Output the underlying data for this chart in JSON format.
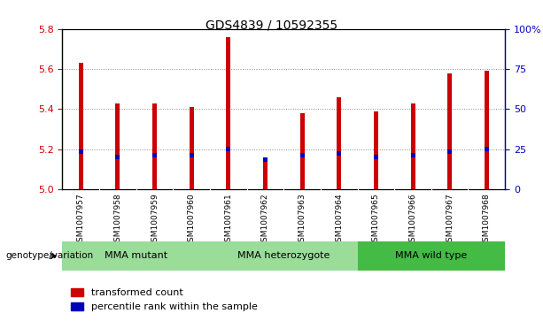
{
  "title": "GDS4839 / 10592355",
  "samples": [
    "GSM1007957",
    "GSM1007958",
    "GSM1007959",
    "GSM1007960",
    "GSM1007961",
    "GSM1007962",
    "GSM1007963",
    "GSM1007964",
    "GSM1007965",
    "GSM1007966",
    "GSM1007967",
    "GSM1007968"
  ],
  "red_values": [
    5.63,
    5.43,
    5.43,
    5.41,
    5.76,
    5.15,
    5.38,
    5.46,
    5.39,
    5.43,
    5.58,
    5.59
  ],
  "blue_values": [
    5.19,
    5.16,
    5.17,
    5.17,
    5.2,
    5.15,
    5.17,
    5.18,
    5.16,
    5.17,
    5.19,
    5.2
  ],
  "ylim_left": [
    5.0,
    5.8
  ],
  "ylim_right": [
    0,
    100
  ],
  "yticks_left": [
    5.0,
    5.2,
    5.4,
    5.6,
    5.8
  ],
  "yticks_right": [
    0,
    25,
    50,
    75,
    100
  ],
  "bar_width": 0.12,
  "blue_bar_width": 0.12,
  "blue_bar_height": 0.022,
  "bar_color_red": "#cc0000",
  "bar_color_blue": "#0000bb",
  "sample_area_color": "#cccccc",
  "group_color_light": "#99dd99",
  "group_color_dark": "#44bb44",
  "legend_red": "transformed count",
  "legend_blue": "percentile rank within the sample",
  "genotype_label": "genotype/variation",
  "title_fontsize": 10,
  "axis_label_color_left": "#cc0000",
  "axis_label_color_right": "#0000bb",
  "group_boundaries": [
    [
      0,
      3,
      "MMA mutant"
    ],
    [
      4,
      7,
      "MMA heterozygote"
    ],
    [
      8,
      11,
      "MMA wild type"
    ]
  ]
}
